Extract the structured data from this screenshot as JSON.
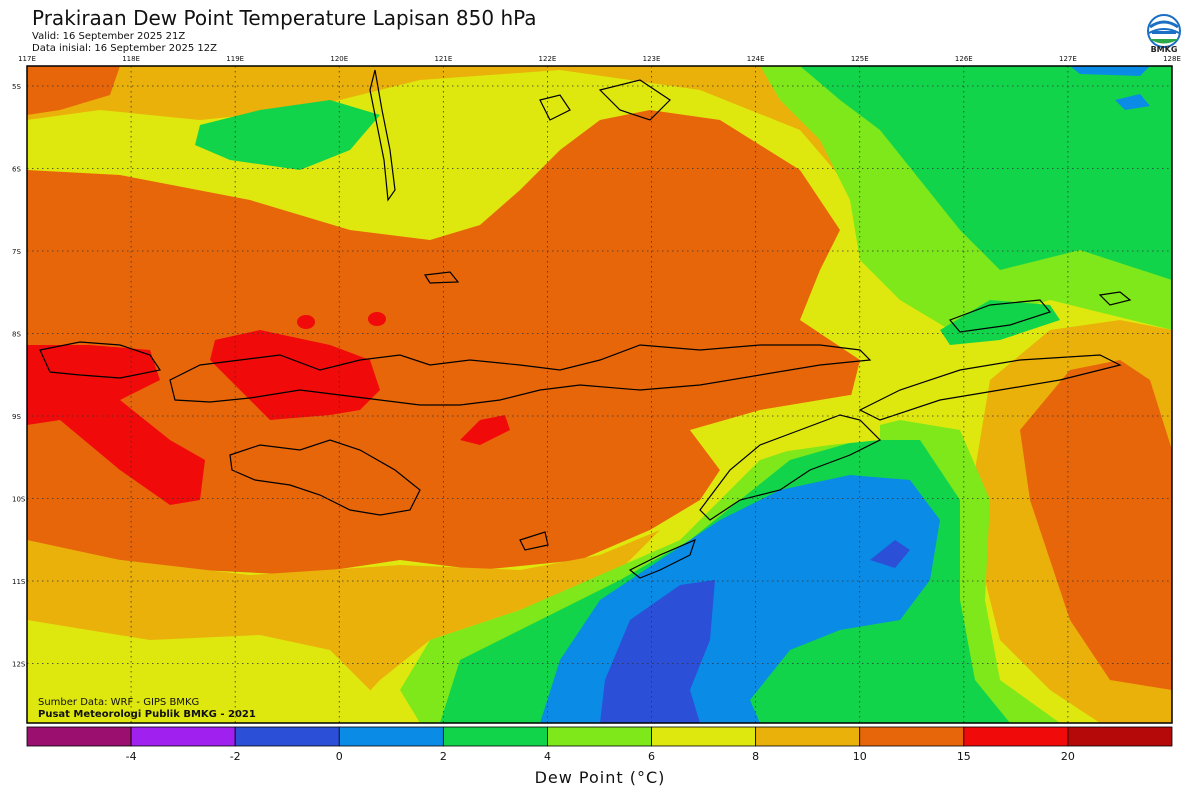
{
  "header": {
    "title": "Prakiraan Dew Point Temperature Lapisan 850 hPa",
    "valid": "Valid: 16 September 2025 21Z",
    "initial": "Data inisial: 16 September 2025 12Z"
  },
  "logo": {
    "icon": "bmkg-logo-icon",
    "text": "BMKG"
  },
  "axes": {
    "lon_labels": [
      "117E",
      "118E",
      "119E",
      "120E",
      "121E",
      "122E",
      "123E",
      "124E",
      "125E",
      "126E",
      "127E",
      "128E"
    ],
    "lat_labels": [
      "5S",
      "6S",
      "7S",
      "8S",
      "9S",
      "10S",
      "11S",
      "12S"
    ]
  },
  "source": {
    "line1": "Sumber Data: WRF - GIPS BMKG",
    "line2": "Pusat Meteorologi Publik BMKG - 2021"
  },
  "colorbar": {
    "label": "Dew Point (°C)",
    "ticks": [
      "-4",
      "-2",
      "0",
      "2",
      "4",
      "6",
      "8",
      "10",
      "15",
      "20"
    ],
    "colors": [
      "#9b0f6e",
      "#a020f0",
      "#2b4fd6",
      "#0a8be6",
      "#12d44a",
      "#7ee81a",
      "#dfe80e",
      "#eab10a",
      "#e8660a",
      "#f00a0a",
      "#b50808"
    ]
  },
  "palette": {
    "darkblue": "#2b4fd6",
    "blue": "#0a8be6",
    "green": "#12d44a",
    "lime": "#7ee81a",
    "yellow": "#dfe80e",
    "gold": "#eab10a",
    "orange": "#e8660a",
    "red": "#f00a0a"
  }
}
